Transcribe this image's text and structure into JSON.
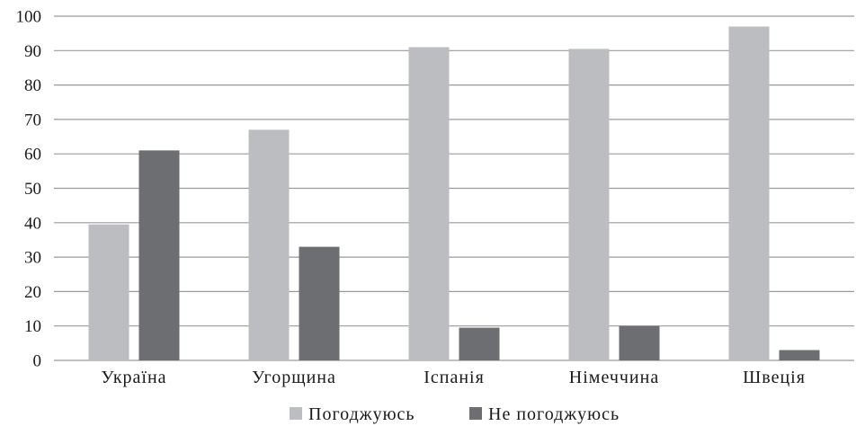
{
  "chart_data": {
    "type": "bar",
    "categories": [
      "Україна",
      "Угорщина",
      "Іспанія",
      "Німеччина",
      "Швеція"
    ],
    "series": [
      {
        "name": "Погоджуюсь",
        "color": "#bcbdc0",
        "values": [
          39.5,
          67,
          91,
          90.5,
          97
        ]
      },
      {
        "name": "Не погоджуюсь",
        "color": "#6d6e72",
        "values": [
          61,
          33,
          9.5,
          10,
          3
        ]
      }
    ],
    "title": "",
    "xlabel": "",
    "ylabel": "",
    "ylim": [
      0,
      100
    ],
    "yticks": [
      0,
      10,
      20,
      30,
      40,
      50,
      60,
      70,
      80,
      90,
      100
    ],
    "grid": true,
    "legend": "bottom-center"
  }
}
